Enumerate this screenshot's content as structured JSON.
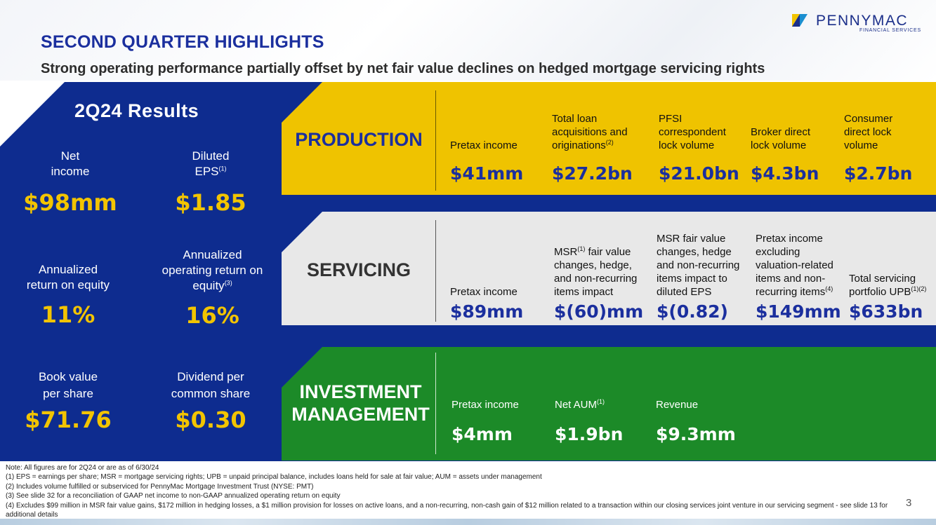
{
  "header": {
    "title": "SECOND QUARTER HIGHLIGHTS",
    "subtitle": "Strong operating performance partially offset by net fair value declines on hedged mortgage servicing rights"
  },
  "logo": {
    "name": "PENNYMAC",
    "tagline": "FINANCIAL SERVICES"
  },
  "results": {
    "title": "2Q24 Results",
    "metrics": [
      {
        "label_1": "Net",
        "label_2": "income",
        "value": "$98mm"
      },
      {
        "label_1": "Diluted",
        "label_2": "EPS",
        "sup": "(1)",
        "value": "$1.85"
      },
      {
        "label_1": "Annualized",
        "label_2": "return on equity",
        "value": "11%"
      },
      {
        "label_1": "Annualized",
        "label_2": "operating return on",
        "label_3": "equity",
        "sup": "(3)",
        "value": "16%"
      },
      {
        "label_1": "Book value",
        "label_2": "per share",
        "value": "$71.76"
      },
      {
        "label_1": "Dividend per",
        "label_2": "common share",
        "value": "$0.30"
      }
    ]
  },
  "production": {
    "title": "PRODUCTION",
    "items": [
      {
        "label": "Pretax income",
        "value": "$41mm"
      },
      {
        "label": "Total loan acquisitions and originations",
        "sup": "(2)",
        "value": "$27.2bn"
      },
      {
        "label": "PFSI correspondent lock volume",
        "value": "$21.0bn"
      },
      {
        "label": "Broker direct lock volume",
        "value": "$4.3bn"
      },
      {
        "label": "Consumer direct lock volume",
        "value": "$2.7bn"
      }
    ]
  },
  "servicing": {
    "title": "SERVICING",
    "items": [
      {
        "label": "Pretax income",
        "value": "$89mm"
      },
      {
        "label_pre": "MSR",
        "sup": "(1)",
        "label": " fair value changes, hedge, and non-recurring items impact",
        "value": "$(60)mm"
      },
      {
        "label": "MSR fair value changes, hedge and non-recurring items impact to diluted EPS",
        "value": "$(0.82)"
      },
      {
        "label": "Pretax income excluding valuation-related items and non-recurring items",
        "sup": "(4)",
        "value": "$149mm"
      },
      {
        "label": "Total servicing portfolio UPB",
        "sup": "(1)(2)",
        "value": "$633bn"
      }
    ]
  },
  "investment": {
    "title_1": "INVESTMENT",
    "title_2": "MANAGEMENT",
    "items": [
      {
        "label": "Pretax income",
        "value": "$4mm"
      },
      {
        "label": "Net AUM",
        "sup": "(1)",
        "value": "$1.9bn"
      },
      {
        "label": "Revenue",
        "value": "$9.3mm"
      }
    ]
  },
  "notes": [
    "Note: All figures are for 2Q24 or are as of 6/30/24",
    "(1) EPS = earnings per share; MSR = mortgage servicing rights; UPB = unpaid principal balance, includes loans held for sale at fair value; AUM = assets under management",
    "(2) Includes volume fulfilled or subserviced for PennyMac Mortgage Investment Trust (NYSE: PMT)",
    "(3) See slide 32 for a reconciliation of GAAP net income to non-GAAP annualized operating return on equity",
    "(4) Excludes $99 million in MSR fair value gains, $172 million in hedging losses, a $1 million provision for losses on active loans, and a non-recurring, non-cash gain of $12 million related to a transaction within our closing services joint venture in our servicing segment - see slide 13 for additional details"
  ],
  "page_number": "3",
  "colors": {
    "navy": "#0e2c8f",
    "gold": "#efc300",
    "gray": "#e8e8e8",
    "green": "#1c8a28",
    "title_blue": "#1b2f9e"
  }
}
